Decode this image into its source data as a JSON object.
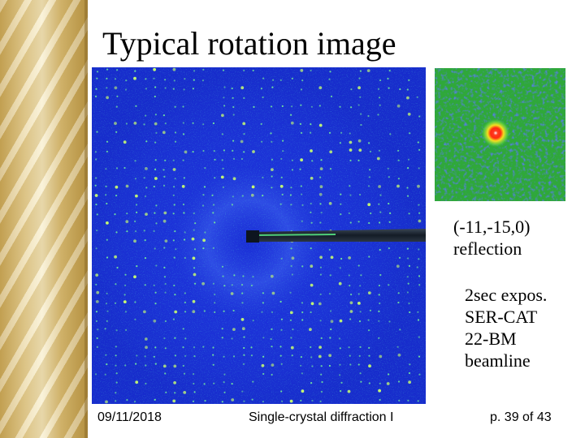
{
  "slide": {
    "title": "Typical rotation image",
    "reflection_caption": {
      "line1": "(-11,-15,0)",
      "line2": "reflection"
    },
    "exposure_caption": {
      "line1": "2sec expos.",
      "line2": "SER-CAT",
      "line3": "22-BM",
      "line4": "beamline"
    }
  },
  "footer": {
    "date": "09/11/2018",
    "course": "Single-crystal diffraction I",
    "page": "p. 39 of 43"
  },
  "colors": {
    "detector_background": "#1a2fd6",
    "spot_green": "#6fe0a0",
    "beamstop": "#1c2a3a",
    "inset_background": "#2fa83a",
    "inset_peak": "#ff2020"
  }
}
